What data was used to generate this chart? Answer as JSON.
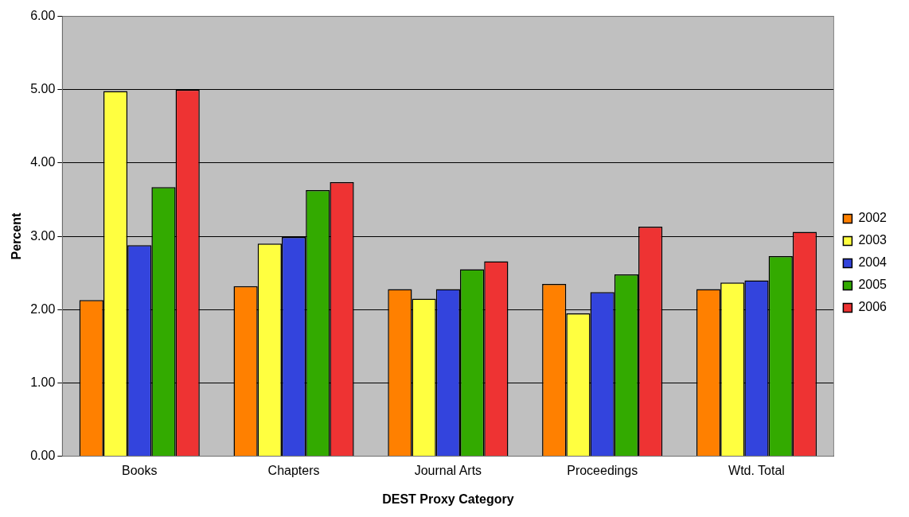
{
  "chart_data": {
    "type": "bar",
    "xlabel": "DEST Proxy Category",
    "ylabel": "Percent",
    "categories": [
      "Books",
      "Chapters",
      "Journal Arts",
      "Proceedings",
      "Wtd. Total"
    ],
    "series": [
      {
        "name": "2002",
        "color": "#ff8000",
        "values": [
          2.13,
          2.32,
          2.28,
          2.35,
          2.28
        ]
      },
      {
        "name": "2003",
        "color": "#ffff40",
        "values": [
          4.98,
          2.9,
          2.15,
          1.95,
          2.37
        ]
      },
      {
        "name": "2004",
        "color": "#3344dd",
        "values": [
          2.88,
          2.99,
          2.28,
          2.24,
          2.4
        ]
      },
      {
        "name": "2005",
        "color": "#33aa00",
        "values": [
          3.67,
          3.63,
          2.55,
          2.48,
          2.73
        ]
      },
      {
        "name": "2006",
        "color": "#ee3333",
        "values": [
          5.0,
          3.74,
          2.66,
          3.13,
          3.06
        ]
      }
    ],
    "ylim": [
      0,
      6
    ],
    "yticks": [
      {
        "value": 0,
        "label": "0.00"
      },
      {
        "value": 1,
        "label": "1.00"
      },
      {
        "value": 2,
        "label": "2.00"
      },
      {
        "value": 3,
        "label": "3.00"
      },
      {
        "value": 4,
        "label": "4.00"
      },
      {
        "value": 5,
        "label": "5.00"
      },
      {
        "value": 6,
        "label": "6.00"
      }
    ],
    "grid": "y",
    "legend": "right"
  }
}
